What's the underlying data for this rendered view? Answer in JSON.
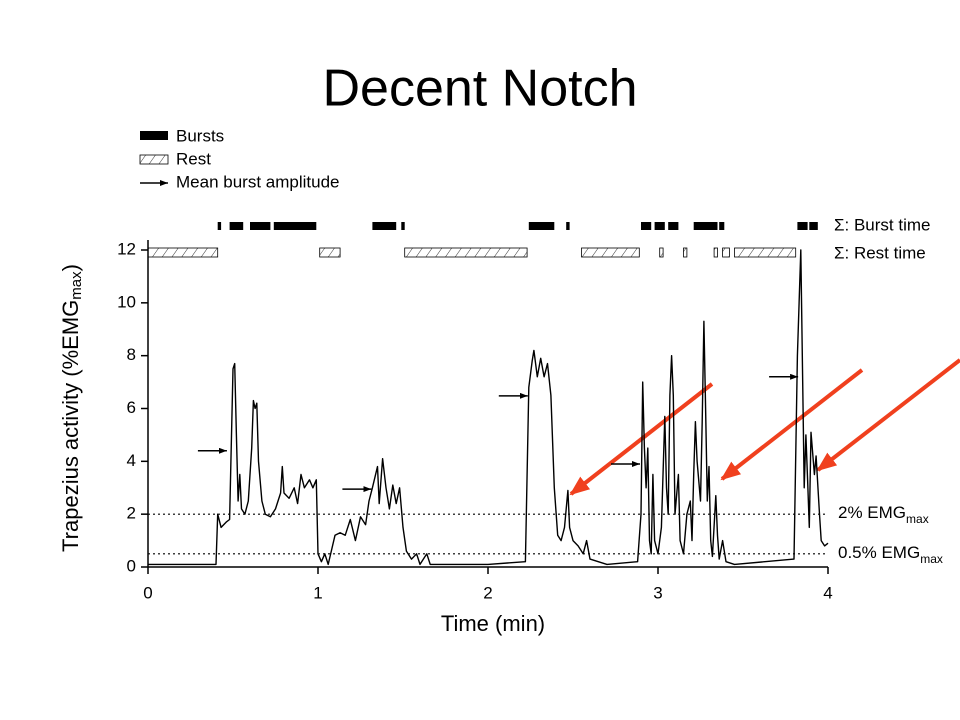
{
  "title": "Decent Notch",
  "chart_data": {
    "type": "line",
    "x_label": "Time (min)",
    "y_label": "Trapezius activity (%EMG",
    "y_label_sub": "max",
    "y_label_end": ")",
    "legend": [
      "Bursts",
      "Rest",
      "Mean burst amplitude"
    ],
    "burst_label": "Σ: Burst time",
    "rest_label": "Σ: Rest time",
    "xlim": [
      0,
      4
    ],
    "xticks": [
      0,
      1,
      2,
      3,
      4
    ],
    "ylim": [
      0,
      12
    ],
    "yticks": [
      0,
      2,
      4,
      6,
      8,
      10,
      12
    ],
    "color": "#000000",
    "thresholds": [
      {
        "value": 2,
        "label": "2% EMG",
        "sub": "max"
      },
      {
        "value": 0.5,
        "label": "0.5% EMG",
        "sub": "max"
      }
    ],
    "bursts": [
      [
        0.41,
        0.43
      ],
      [
        0.48,
        0.56
      ],
      [
        0.6,
        0.72
      ],
      [
        0.74,
        0.99
      ],
      [
        1.32,
        1.46
      ],
      [
        1.49,
        1.51
      ],
      [
        2.24,
        2.39
      ],
      [
        2.46,
        2.48
      ],
      [
        2.9,
        2.96
      ],
      [
        2.98,
        3.04
      ],
      [
        3.06,
        3.12
      ],
      [
        3.21,
        3.35
      ],
      [
        3.36,
        3.39
      ],
      [
        3.82,
        3.88
      ],
      [
        3.89,
        3.94
      ]
    ],
    "rests": [
      [
        0.0,
        0.41
      ],
      [
        1.01,
        1.13
      ],
      [
        1.51,
        2.23
      ],
      [
        2.55,
        2.89
      ],
      [
        3.01,
        3.03
      ],
      [
        3.15,
        3.17
      ],
      [
        3.33,
        3.35
      ],
      [
        3.38,
        3.42
      ],
      [
        3.45,
        3.81
      ]
    ],
    "mean_amplitudes": [
      {
        "x": 0.47,
        "y": 4.4
      },
      {
        "x": 1.32,
        "y": 2.95
      },
      {
        "x": 2.24,
        "y": 6.48
      },
      {
        "x": 2.9,
        "y": 3.9
      },
      {
        "x": 3.83,
        "y": 7.2
      }
    ],
    "x": [
      0,
      0.2,
      0.4,
      0.41,
      0.43,
      0.46,
      0.48,
      0.5,
      0.51,
      0.52,
      0.53,
      0.54,
      0.55,
      0.57,
      0.59,
      0.61,
      0.62,
      0.63,
      0.64,
      0.65,
      0.67,
      0.69,
      0.72,
      0.75,
      0.78,
      0.79,
      0.8,
      0.83,
      0.86,
      0.88,
      0.9,
      0.92,
      0.95,
      0.97,
      0.99,
      1.0,
      1.02,
      1.04,
      1.06,
      1.1,
      1.13,
      1.16,
      1.19,
      1.22,
      1.25,
      1.28,
      1.3,
      1.32,
      1.35,
      1.36,
      1.38,
      1.4,
      1.42,
      1.44,
      1.46,
      1.48,
      1.5,
      1.52,
      1.55,
      1.58,
      1.6,
      1.64,
      1.66,
      1.8,
      2.0,
      2.22,
      2.24,
      2.26,
      2.27,
      2.29,
      2.31,
      2.33,
      2.35,
      2.37,
      2.39,
      2.41,
      2.43,
      2.45,
      2.47,
      2.48,
      2.5,
      2.53,
      2.56,
      2.58,
      2.6,
      2.7,
      2.88,
      2.9,
      2.91,
      2.92,
      2.93,
      2.94,
      2.95,
      2.96,
      2.97,
      2.98,
      3.0,
      3.02,
      3.04,
      3.05,
      3.06,
      3.07,
      3.08,
      3.09,
      3.1,
      3.12,
      3.13,
      3.15,
      3.17,
      3.19,
      3.2,
      3.21,
      3.22,
      3.23,
      3.25,
      3.26,
      3.27,
      3.28,
      3.29,
      3.3,
      3.31,
      3.32,
      3.34,
      3.35,
      3.36,
      3.38,
      3.4,
      3.45,
      3.8,
      3.82,
      3.83,
      3.84,
      3.85,
      3.86,
      3.87,
      3.88,
      3.89,
      3.9,
      3.92,
      3.93,
      3.95,
      3.96,
      3.98,
      4.0
    ],
    "values": [
      0.1,
      0.1,
      0.1,
      2.0,
      1.5,
      1.7,
      1.8,
      7.5,
      7.7,
      5.0,
      2.5,
      3.5,
      2.2,
      2.0,
      2.5,
      4.5,
      6.3,
      6.0,
      6.2,
      4.0,
      2.5,
      2.0,
      1.9,
      2.2,
      2.8,
      3.8,
      2.8,
      2.6,
      3.0,
      2.4,
      3.5,
      3.0,
      3.3,
      3.0,
      3.3,
      0.5,
      0.2,
      0.5,
      0.1,
      1.2,
      1.3,
      1.2,
      1.8,
      1.0,
      1.9,
      1.6,
      2.5,
      3.0,
      3.8,
      2.4,
      4.1,
      3.0,
      2.2,
      3.1,
      2.4,
      3.0,
      1.5,
      0.6,
      0.3,
      0.5,
      0.1,
      0.5,
      0.1,
      0.1,
      0.1,
      0.2,
      6.8,
      7.8,
      8.2,
      7.2,
      7.9,
      7.2,
      7.7,
      6.5,
      3.0,
      1.2,
      1.0,
      1.5,
      2.9,
      1.5,
      1.0,
      0.8,
      0.5,
      1.0,
      0.3,
      0.1,
      0.2,
      2.0,
      7.0,
      4.5,
      3.0,
      4.5,
      1.0,
      0.5,
      3.5,
      1.0,
      0.5,
      1.5,
      5.7,
      3.0,
      2.0,
      6.5,
      8.0,
      6.5,
      2.0,
      3.5,
      1.0,
      0.5,
      2.0,
      2.5,
      1.0,
      3.5,
      5.5,
      4.0,
      2.5,
      5.5,
      9.3,
      6.0,
      2.5,
      3.8,
      1.0,
      0.4,
      2.7,
      1.2,
      0.3,
      1.0,
      0.2,
      0.1,
      0.3,
      8.0,
      10.0,
      12.0,
      7.5,
      3.0,
      5.0,
      3.3,
      1.5,
      5.1,
      3.5,
      4.2,
      2.0,
      1.0,
      0.8,
      0.9
    ]
  }
}
